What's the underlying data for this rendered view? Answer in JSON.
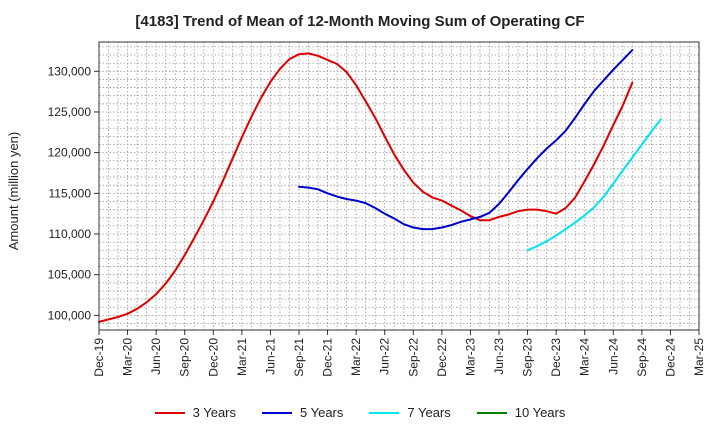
{
  "chart_data": {
    "type": "line",
    "title": "[4183]  Trend of Mean of 12-Month Moving Sum of Operating CF",
    "xlabel": "",
    "ylabel": "Amount (million yen)",
    "x_tick_labels": [
      "Dec-19",
      "Mar-20",
      "Jun-20",
      "Sep-20",
      "Dec-20",
      "Mar-21",
      "Jun-21",
      "Sep-21",
      "Dec-21",
      "Mar-22",
      "Jun-22",
      "Sep-22",
      "Dec-22",
      "Mar-23",
      "Jun-23",
      "Sep-23",
      "Dec-23",
      "Mar-24",
      "Jun-24",
      "Sep-24",
      "Dec-24",
      "Mar-25"
    ],
    "y_ticks": [
      100000,
      105000,
      110000,
      115000,
      120000,
      125000,
      130000
    ],
    "y_tick_labels": [
      "100,000",
      "105,000",
      "110,000",
      "115,000",
      "120,000",
      "125,000",
      "130,000"
    ],
    "ylim": [
      98200,
      133600
    ],
    "grid": true,
    "legend_position": "bottom",
    "series": [
      {
        "name": "3 Years",
        "color": "#dd0000",
        "start_index": 0,
        "values": [
          99200,
          99500,
          99800,
          100200,
          100800,
          101600,
          102600,
          103900,
          105500,
          107400,
          109500,
          111700,
          114000,
          116500,
          119200,
          121900,
          124400,
          126700,
          128700,
          130300,
          131500,
          132100,
          132200,
          131900,
          131400,
          130900,
          129900,
          128300,
          126300,
          124300,
          122000,
          119800,
          117900,
          116300,
          115200,
          114500,
          114100,
          113500,
          112900,
          112200,
          111700,
          111700,
          112100,
          112400,
          112800,
          113000,
          113000,
          112800,
          112500,
          113200,
          114500,
          116500,
          118600,
          120900,
          123400,
          125800,
          128600
        ]
      },
      {
        "name": "5 Years",
        "color": "#0000cc",
        "start_index": 21,
        "values": [
          115800,
          115700,
          115500,
          115000,
          114600,
          114300,
          114100,
          113800,
          113200,
          112500,
          111900,
          111200,
          110800,
          110600,
          110600,
          110800,
          111100,
          111500,
          111800,
          112100,
          112600,
          113700,
          115100,
          116600,
          118000,
          119300,
          120500,
          121500,
          122700,
          124300,
          126000,
          127600,
          128900,
          130200,
          131400,
          132600
        ]
      },
      {
        "name": "7 Years",
        "color": "#00e5ee",
        "start_index": 45,
        "values": [
          108000,
          108500,
          109100,
          109800,
          110600,
          111400,
          112300,
          113300,
          114600,
          116200,
          117800,
          119400,
          121000,
          122600,
          124100
        ]
      },
      {
        "name": "10 Years",
        "color": "#008000",
        "start_index": 0,
        "values": []
      }
    ]
  }
}
